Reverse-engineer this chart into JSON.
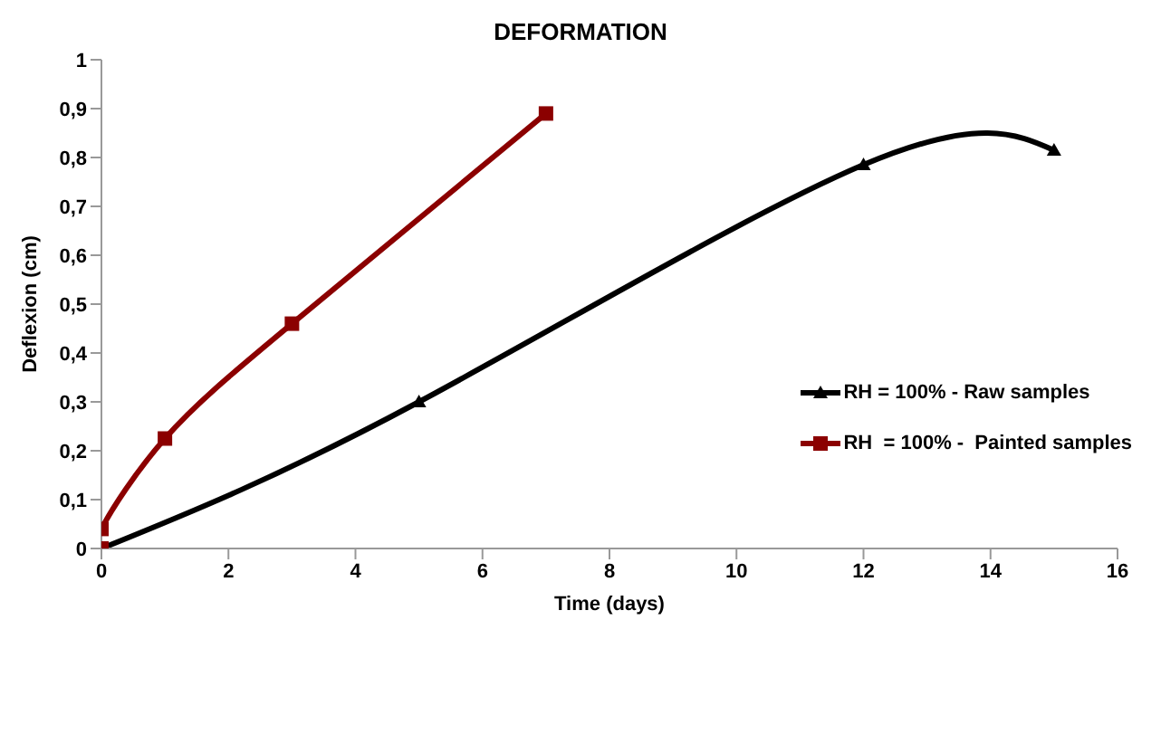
{
  "chart_data": {
    "type": "line",
    "title": "DEFORMATION",
    "xlabel": "Time (days)",
    "ylabel": "Deflexion  (cm)",
    "xlim": [
      0,
      16
    ],
    "xticks": [
      0,
      2,
      4,
      6,
      8,
      10,
      12,
      14,
      16
    ],
    "ylim": [
      0,
      1
    ],
    "yticks": [
      {
        "value": 0,
        "label": "0"
      },
      {
        "value": 0.1,
        "label": "0,1"
      },
      {
        "value": 0.2,
        "label": "0,2"
      },
      {
        "value": 0.3,
        "label": "0,3"
      },
      {
        "value": 0.4,
        "label": "0,4"
      },
      {
        "value": 0.5,
        "label": "0,5"
      },
      {
        "value": 0.6,
        "label": "0,6"
      },
      {
        "value": 0.7,
        "label": "0,7"
      },
      {
        "value": 0.8,
        "label": "0,8"
      },
      {
        "value": 0.9,
        "label": "0,9"
      },
      {
        "value": 1,
        "label": "1"
      }
    ],
    "grid": false,
    "legend": "right",
    "line_style": "solid",
    "series": [
      {
        "name": "RH = 100% - Raw samples",
        "color": "#000000",
        "marker": "triangle",
        "x": [
          0,
          5,
          12,
          15
        ],
        "values": [
          0,
          0.3,
          0.785,
          0.815
        ]
      },
      {
        "name": "RH  = 100% -  Painted samples",
        "color": "#8b0000",
        "marker": "square",
        "x": [
          0,
          0,
          1,
          3,
          7
        ],
        "values": [
          0,
          0.04,
          0.225,
          0.46,
          0.89
        ]
      }
    ]
  }
}
